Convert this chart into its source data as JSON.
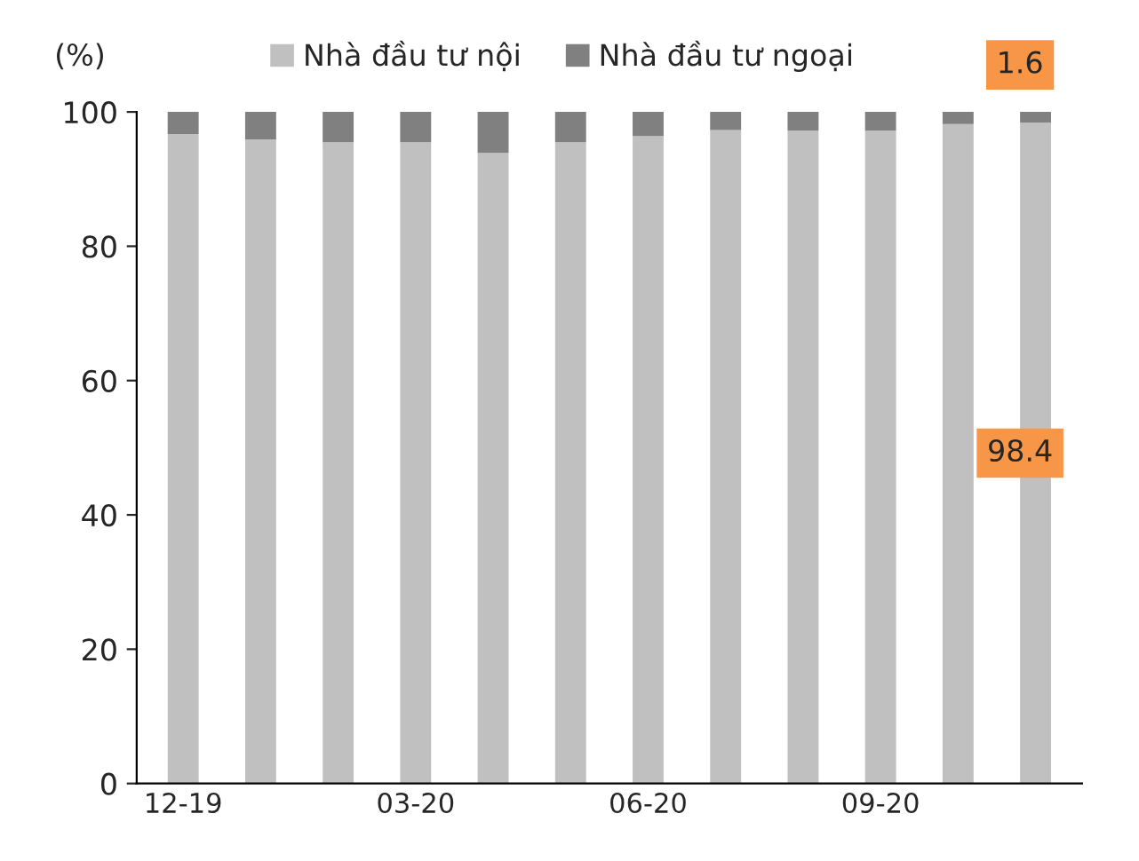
{
  "chart_data": {
    "type": "bar",
    "stacked": true,
    "ylabel": "(%)",
    "categories": [
      "12-19",
      null,
      null,
      "03-20",
      null,
      null,
      "06-20",
      null,
      null,
      "09-20",
      null,
      null
    ],
    "series": [
      {
        "name": "Nhà đầu tư nội",
        "color": "#c0c0c0",
        "values": [
          96.7,
          95.9,
          95.5,
          95.5,
          93.9,
          95.5,
          96.4,
          97.3,
          97.2,
          97.2,
          98.2,
          98.4
        ],
        "value_labels": [
          null,
          null,
          null,
          null,
          null,
          null,
          null,
          null,
          null,
          null,
          null,
          "98.4"
        ]
      },
      {
        "name": "Nhà đầu tư ngoại",
        "color": "#808080",
        "values": [
          3.3,
          4.1,
          4.5,
          4.5,
          6.1,
          4.5,
          3.6,
          2.7,
          2.8,
          2.8,
          1.8,
          1.6
        ],
        "value_labels": [
          null,
          null,
          null,
          null,
          null,
          null,
          null,
          null,
          null,
          null,
          null,
          "1.6"
        ]
      }
    ],
    "ylim": [
      0,
      100
    ],
    "yticks": [
      0,
      20,
      40,
      60,
      80,
      100
    ],
    "grid": false,
    "legend": "top"
  }
}
